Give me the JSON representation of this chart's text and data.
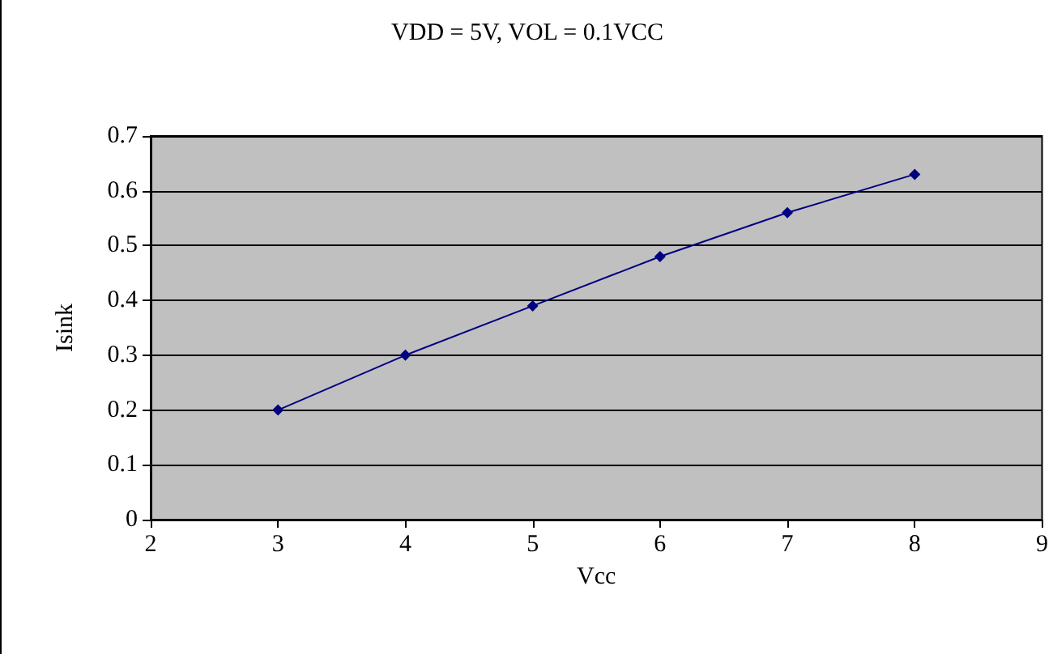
{
  "chart_data": {
    "type": "line",
    "title": "VDD = 5V, VOL = 0.1VCC",
    "xlabel": "Vcc",
    "ylabel": "Isink",
    "x": [
      3,
      4,
      5,
      6,
      7,
      8
    ],
    "series": [
      {
        "color": "#000080",
        "values": [
          0.2,
          0.3,
          0.39,
          0.48,
          0.56,
          0.63
        ]
      }
    ],
    "xlim": [
      2,
      9
    ],
    "xticks": [
      2,
      3,
      4,
      5,
      6,
      7,
      8,
      9
    ],
    "ylim": [
      0,
      0.7
    ],
    "yticks": [
      0,
      0.1,
      0.2,
      0.3,
      0.4,
      0.5,
      0.6,
      0.7
    ],
    "grid": "y",
    "marker": "diamond",
    "line_style": "solid"
  }
}
